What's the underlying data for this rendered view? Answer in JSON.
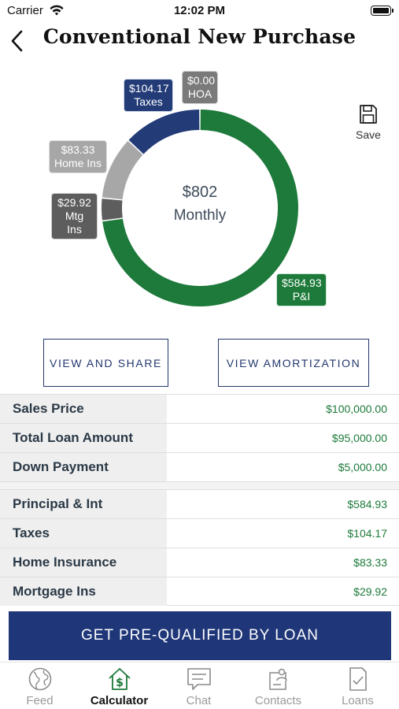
{
  "status_bar": {
    "carrier": "Carrier",
    "time": "12:02 PM"
  },
  "header": {
    "title": "Conventional New Purchase",
    "back_icon": "chevron-left-icon"
  },
  "save": {
    "label": "Save",
    "icon": "floppy-disk-icon"
  },
  "summary": {
    "amount": "$802",
    "period": "Monthly"
  },
  "chart_data": {
    "type": "donut",
    "slices": [
      {
        "name": "P&I",
        "value": 584.93,
        "label": "$584.93",
        "color": "#1d7a3a"
      },
      {
        "name": "Mtg Ins",
        "value": 29.92,
        "label": "$29.92",
        "color": "#5d5d5d"
      },
      {
        "name": "Home Ins",
        "value": 83.33,
        "label": "$83.33",
        "color": "#a7a7a7"
      },
      {
        "name": "Taxes",
        "value": 104.17,
        "label": "$104.17",
        "color": "#233c78"
      },
      {
        "name": "HOA",
        "value": 0.0,
        "label": "$0.00",
        "color": "#7a7a7a"
      }
    ]
  },
  "callouts": {
    "taxes": {
      "amount": "$104.17",
      "name": "Taxes"
    },
    "hoa": {
      "amount": "$0.00",
      "name": "HOA"
    },
    "home_ins": {
      "amount": "$83.33",
      "name": "Home Ins"
    },
    "mtg_ins": {
      "amount": "$29.92",
      "name": "Mtg Ins"
    },
    "pi": {
      "amount": "$584.93",
      "name": "P&I"
    }
  },
  "actions": {
    "share": "VIEW AND SHARE",
    "amortization": "VIEW AMORTIZATION"
  },
  "loan_table": [
    {
      "label": "Sales Price",
      "value": "$100,000.00"
    },
    {
      "label": "Total Loan Amount",
      "value": "$95,000.00"
    },
    {
      "label": "Down Payment",
      "value": "$5,000.00"
    }
  ],
  "payment_table": [
    {
      "label": "Principal & Int",
      "value": "$584.93"
    },
    {
      "label": "Taxes",
      "value": "$104.17"
    },
    {
      "label": "Home Insurance",
      "value": "$83.33"
    },
    {
      "label": "Mortgage Ins",
      "value": "$29.92"
    }
  ],
  "cta": {
    "label": "GET PRE-QUALIFIED BY LOAN"
  },
  "tabs": [
    {
      "label": "Feed",
      "icon": "globe-icon",
      "active": false
    },
    {
      "label": "Calculator",
      "icon": "calculator-house-icon",
      "active": true
    },
    {
      "label": "Chat",
      "icon": "chat-bubble-icon",
      "active": false
    },
    {
      "label": "Contacts",
      "icon": "contacts-icon",
      "active": false
    },
    {
      "label": "Loans",
      "icon": "document-check-icon",
      "active": false
    }
  ],
  "colors": {
    "accent": "#1f3778",
    "positive": "#1d7a3a"
  }
}
